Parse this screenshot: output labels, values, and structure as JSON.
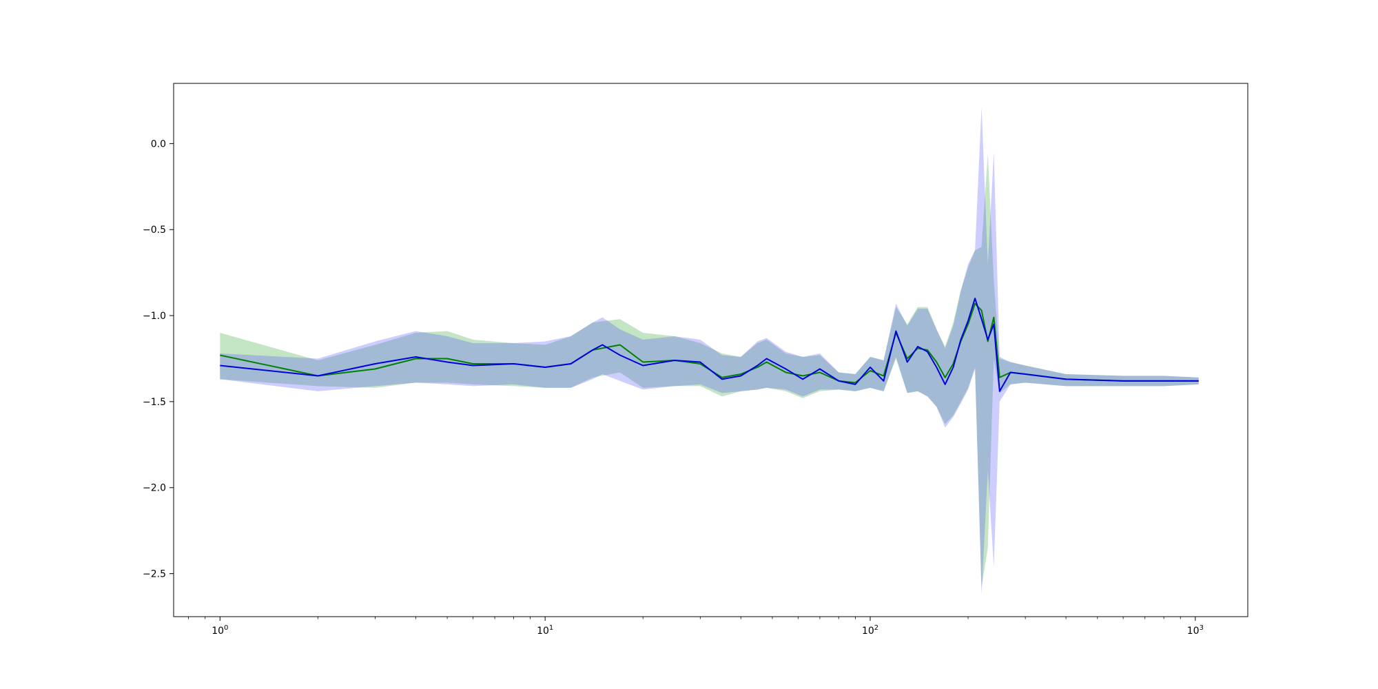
{
  "chart_data": {
    "type": "line",
    "title": "",
    "xlabel": "",
    "ylabel": "",
    "x_scale": "log",
    "xlim": [
      0.72,
      1450
    ],
    "ylim": [
      -2.75,
      0.35
    ],
    "grid": false,
    "legend": "none",
    "x_ticks": [
      {
        "value": 1,
        "base": "10",
        "exp": "0"
      },
      {
        "value": 10,
        "base": "10",
        "exp": "1"
      },
      {
        "value": 100,
        "base": "10",
        "exp": "2"
      },
      {
        "value": 1000,
        "base": "10",
        "exp": "3"
      }
    ],
    "y_ticks": [
      {
        "value": 0.0,
        "label": "0.0"
      },
      {
        "value": -0.5,
        "label": "−0.5"
      },
      {
        "value": -1.0,
        "label": "−1.0"
      },
      {
        "value": -1.5,
        "label": "−1.5"
      },
      {
        "value": -2.0,
        "label": "−2.0"
      },
      {
        "value": -2.5,
        "label": "−2.5"
      }
    ],
    "series": [
      {
        "color": "#008000",
        "band_color": "#2ca02c",
        "x": [
          1,
          2,
          3,
          4,
          5,
          6,
          8,
          10,
          12,
          14,
          17,
          20,
          25,
          30,
          35,
          40,
          45,
          48,
          55,
          62,
          70,
          80,
          90,
          100,
          110,
          120,
          130,
          140,
          150,
          160,
          170,
          180,
          190,
          200,
          210,
          220,
          230,
          240,
          250,
          270,
          300,
          400,
          600,
          800,
          1024
        ],
        "y": [
          -1.23,
          -1.35,
          -1.31,
          -1.25,
          -1.25,
          -1.28,
          -1.28,
          -1.3,
          -1.28,
          -1.2,
          -1.17,
          -1.27,
          -1.26,
          -1.28,
          -1.36,
          -1.34,
          -1.3,
          -1.27,
          -1.33,
          -1.35,
          -1.33,
          -1.38,
          -1.39,
          -1.32,
          -1.35,
          -1.1,
          -1.25,
          -1.19,
          -1.2,
          -1.27,
          -1.36,
          -1.28,
          -1.15,
          -1.05,
          -0.93,
          -0.97,
          -1.15,
          -1.01,
          -1.36,
          -1.33,
          -1.34,
          -1.37,
          -1.38,
          -1.38,
          -1.38
        ],
        "upper": [
          -1.1,
          -1.26,
          -1.17,
          -1.1,
          -1.09,
          -1.14,
          -1.16,
          -1.17,
          -1.12,
          -1.04,
          -1.02,
          -1.1,
          -1.12,
          -1.16,
          -1.22,
          -1.24,
          -1.16,
          -1.14,
          -1.22,
          -1.24,
          -1.23,
          -1.33,
          -1.34,
          -1.24,
          -1.26,
          -0.95,
          -1.05,
          -0.95,
          -0.95,
          -1.08,
          -1.18,
          -1.04,
          -0.85,
          -0.72,
          -0.62,
          -0.6,
          -0.06,
          -0.8,
          -1.25,
          -1.27,
          -1.29,
          -1.34,
          -1.35,
          -1.35,
          -1.36
        ],
        "lower": [
          -1.37,
          -1.41,
          -1.42,
          -1.39,
          -1.39,
          -1.4,
          -1.41,
          -1.42,
          -1.42,
          -1.36,
          -1.33,
          -1.42,
          -1.41,
          -1.41,
          -1.47,
          -1.44,
          -1.43,
          -1.42,
          -1.44,
          -1.48,
          -1.44,
          -1.43,
          -1.44,
          -1.42,
          -1.44,
          -1.25,
          -1.45,
          -1.44,
          -1.47,
          -1.53,
          -1.63,
          -1.58,
          -1.5,
          -1.42,
          -1.3,
          -2.58,
          -2.35,
          -1.25,
          -1.45,
          -1.4,
          -1.39,
          -1.41,
          -1.41,
          -1.41,
          -1.4
        ]
      },
      {
        "color": "#0000e0",
        "band_color": "#4a4aff",
        "x": [
          1,
          2,
          3,
          4,
          5,
          6,
          8,
          10,
          12,
          14,
          15,
          17,
          20,
          25,
          30,
          35,
          40,
          45,
          48,
          55,
          62,
          70,
          80,
          90,
          100,
          110,
          120,
          130,
          140,
          150,
          160,
          170,
          180,
          190,
          200,
          210,
          220,
          230,
          240,
          250,
          270,
          300,
          400,
          600,
          800,
          1024
        ],
        "y": [
          -1.29,
          -1.35,
          -1.28,
          -1.24,
          -1.27,
          -1.29,
          -1.28,
          -1.3,
          -1.28,
          -1.2,
          -1.17,
          -1.23,
          -1.29,
          -1.26,
          -1.27,
          -1.37,
          -1.35,
          -1.29,
          -1.25,
          -1.31,
          -1.37,
          -1.31,
          -1.38,
          -1.4,
          -1.3,
          -1.38,
          -1.09,
          -1.27,
          -1.18,
          -1.21,
          -1.3,
          -1.4,
          -1.3,
          -1.14,
          -1.03,
          -0.9,
          -1.02,
          -1.14,
          -1.05,
          -1.44,
          -1.33,
          -1.34,
          -1.37,
          -1.38,
          -1.38,
          -1.38
        ],
        "upper": [
          -1.22,
          -1.25,
          -1.15,
          -1.09,
          -1.12,
          -1.16,
          -1.16,
          -1.15,
          -1.12,
          -1.04,
          -1.01,
          -1.08,
          -1.14,
          -1.12,
          -1.14,
          -1.23,
          -1.24,
          -1.15,
          -1.13,
          -1.21,
          -1.24,
          -1.22,
          -1.33,
          -1.34,
          -1.24,
          -1.26,
          -0.93,
          -1.06,
          -0.96,
          -0.96,
          -1.08,
          -1.19,
          -1.06,
          -0.86,
          -0.7,
          -0.62,
          0.21,
          -0.7,
          -0.05,
          -1.24,
          -1.27,
          -1.29,
          -1.34,
          -1.35,
          -1.35,
          -1.36
        ],
        "lower": [
          -1.37,
          -1.44,
          -1.41,
          -1.39,
          -1.4,
          -1.41,
          -1.4,
          -1.42,
          -1.42,
          -1.37,
          -1.34,
          -1.38,
          -1.43,
          -1.41,
          -1.4,
          -1.45,
          -1.44,
          -1.43,
          -1.42,
          -1.43,
          -1.47,
          -1.43,
          -1.43,
          -1.44,
          -1.42,
          -1.44,
          -1.24,
          -1.45,
          -1.44,
          -1.47,
          -1.53,
          -1.65,
          -1.59,
          -1.51,
          -1.43,
          -1.31,
          -2.62,
          -1.9,
          -2.46,
          -1.5,
          -1.4,
          -1.39,
          -1.41,
          -1.41,
          -1.41,
          -1.4
        ]
      }
    ]
  }
}
